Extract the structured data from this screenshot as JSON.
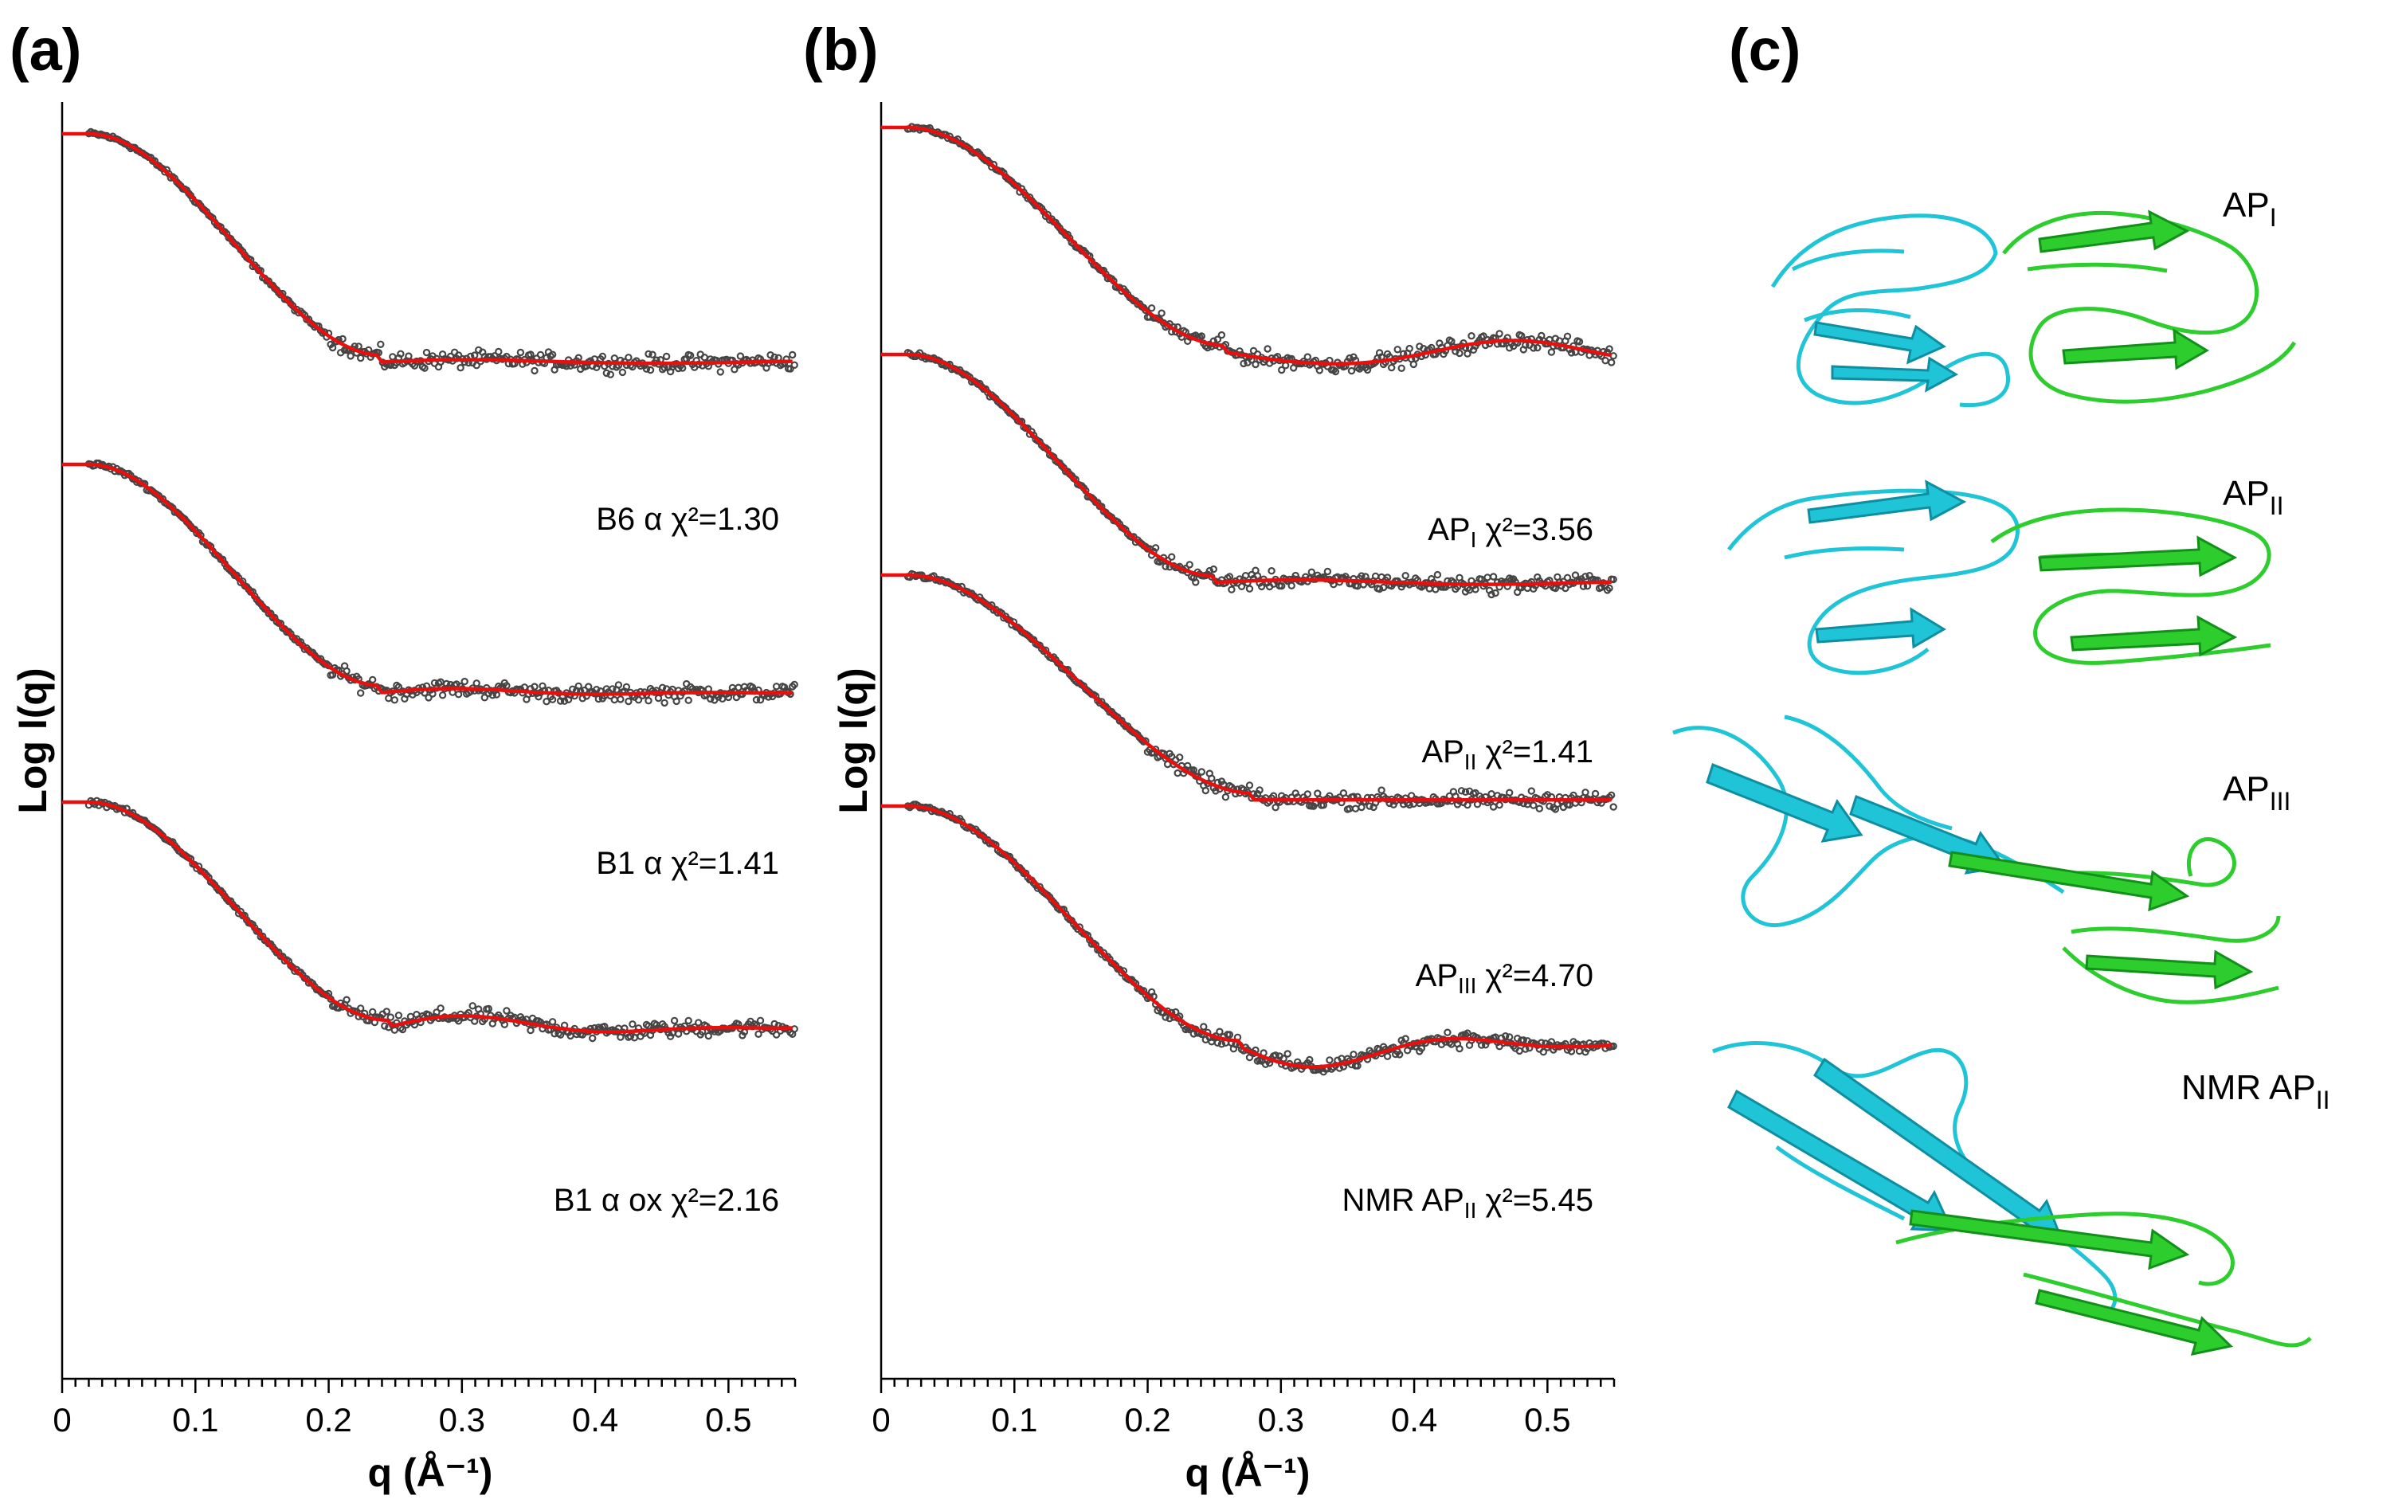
{
  "panel_labels": [
    "(a)",
    "(b)",
    "(c)"
  ],
  "colors": {
    "fit": "#e8100f",
    "points": "#454545",
    "chain_a": "#1fc4d6",
    "chain_a_dark": "#0f8ea1",
    "chain_b": "#2ccd2c",
    "chain_b_dark": "#13901a"
  },
  "chart_data": [
    {
      "panel": "(a)",
      "type": "scatter",
      "xlabel": "q (Å⁻¹)",
      "ylabel": "Log I(q)",
      "xlim": [
        0,
        0.55
      ],
      "x_ticks": [
        "0",
        "0.1",
        "0.2",
        "0.3",
        "0.4",
        "0.5"
      ],
      "y_tick_labels": "none",
      "series": [
        {
          "name": "B6α",
          "chi2": "1.30",
          "label": "B6 α χ²=1.30",
          "offset": 0.0,
          "guinier_end": 0.24,
          "plateau": -3.45,
          "bumps": [
            0.04,
            0.0
          ],
          "noise": 0.07
        },
        {
          "name": "B1α",
          "chi2": "1.41",
          "label": "B1 α χ²=1.41",
          "offset": -2.6,
          "guinier_end": 0.24,
          "plateau": -3.45,
          "bumps": [
            0.05,
            0.02
          ],
          "noise": 0.07
        },
        {
          "name": "B1α ox",
          "chi2": "2.16",
          "label": "B1 α ox χ²=2.16",
          "offset": -5.2,
          "guinier_end": 0.245,
          "plateau": -3.4,
          "bumps": [
            0.15,
            0.05
          ],
          "noise": 0.07
        }
      ]
    },
    {
      "panel": "(b)",
      "type": "scatter",
      "xlabel": "q (Å⁻¹)",
      "ylabel": "Log I(q)",
      "xlim": [
        0,
        0.55
      ],
      "x_ticks": [
        "0",
        "0.1",
        "0.2",
        "0.3",
        "0.4",
        "0.5"
      ],
      "y_tick_labels": "none",
      "series": [
        {
          "name": "API",
          "chi2": "3.56",
          "label_main": "AP",
          "label_sub": "I",
          "label_rest": " χ²=3.56",
          "offset": 0.0,
          "guinier_end": 0.26,
          "plateau": -3.4,
          "bumps": [
            -0.25,
            0.05
          ],
          "noise": 0.07
        },
        {
          "name": "APII",
          "chi2": "1.41",
          "label_main": "AP",
          "label_sub": "II",
          "label_rest": " χ²=1.41",
          "offset": -1.75,
          "guinier_end": 0.25,
          "plateau": -3.45,
          "bumps": [
            0.05,
            0.0
          ],
          "noise": 0.07
        },
        {
          "name": "APIII",
          "chi2": "4.70",
          "label_main": "AP",
          "label_sub": "III",
          "label_rest": " χ²=4.70",
          "offset": -3.5,
          "guinier_end": 0.28,
          "plateau": -3.4,
          "bumps": [
            0.0,
            0.0
          ],
          "noise": 0.07
        },
        {
          "name": "NMR APII",
          "chi2": "5.45",
          "label_main": "NMR AP",
          "label_sub": "II",
          "label_rest": " χ²=5.45",
          "offset": -5.2,
          "guinier_end": 0.27,
          "plateau": -3.65,
          "bumps": [
            -0.25,
            -0.1
          ],
          "noise": 0.07
        }
      ]
    }
  ],
  "models": [
    {
      "main": "AP",
      "sub": "I"
    },
    {
      "main": "AP",
      "sub": "II"
    },
    {
      "main": "AP",
      "sub": "III"
    },
    {
      "main": "NMR AP",
      "sub": "II"
    }
  ]
}
